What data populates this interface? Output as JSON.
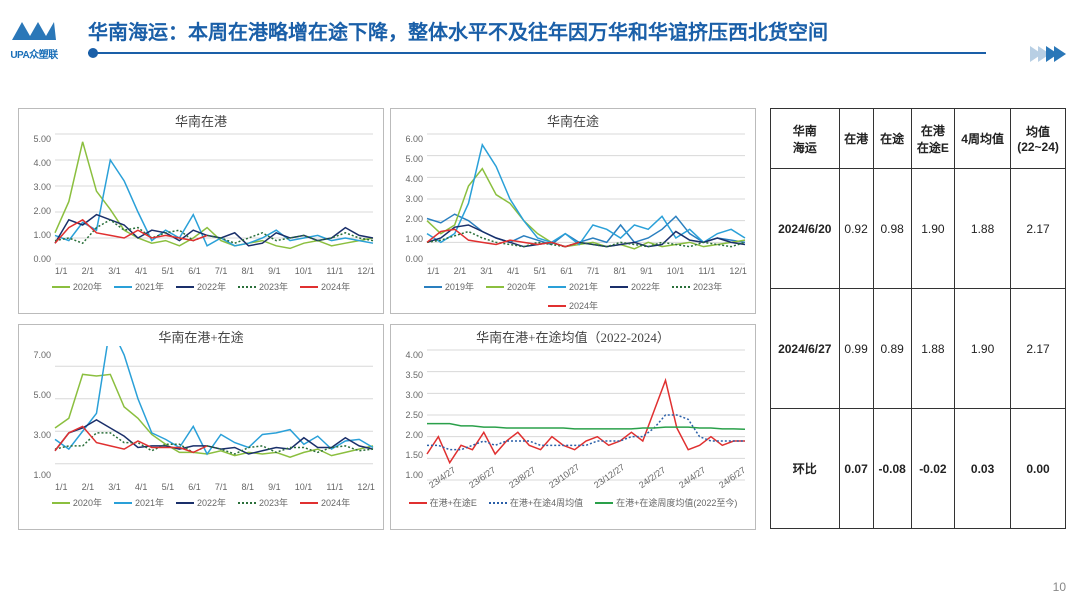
{
  "header": {
    "logo_text": "UPA众塑联",
    "title": "华南海运：本周在港略增在途下降，整体水平不及往年因万华和华谊挤压西北货空间"
  },
  "palette": {
    "y2019": "#2a7fbf",
    "y2020": "#8bbf3f",
    "y2021": "#2aa0d8",
    "y2022": "#1a2f6a",
    "y2023": "#2a6f3a",
    "y2024": "#e03030",
    "avg4w": "#2a5fa8",
    "avgAll": "#2aa04a",
    "grid": "#d8d8d8",
    "axis": "#888",
    "box": "#bbb"
  },
  "charts": {
    "tl": {
      "title": "华南在港",
      "ylim": [
        0,
        5
      ],
      "ytick_step": 1.0,
      "xticks": [
        "1/1",
        "2/1",
        "3/1",
        "4/1",
        "5/1",
        "6/1",
        "7/1",
        "8/1",
        "9/1",
        "10/1",
        "11/1",
        "12/1"
      ],
      "series": [
        {
          "name": "2020年",
          "color": "#8bbf3f",
          "dash": null,
          "data": [
            1.2,
            2.4,
            4.7,
            2.8,
            2.1,
            1.3,
            1.0,
            0.8,
            0.9,
            0.7,
            1.0,
            1.4,
            0.9,
            0.7,
            0.8,
            0.9,
            0.7,
            0.6,
            0.8,
            0.9,
            0.7,
            0.8,
            0.9,
            1.0
          ]
        },
        {
          "name": "2021年",
          "color": "#2aa0d8",
          "dash": null,
          "data": [
            1.1,
            0.9,
            1.6,
            1.3,
            4.0,
            3.2,
            2.0,
            0.9,
            1.3,
            1.0,
            1.9,
            0.7,
            1.0,
            0.7,
            0.8,
            1.0,
            1.3,
            0.9,
            1.0,
            1.1,
            0.9,
            1.0,
            0.9,
            0.8
          ]
        },
        {
          "name": "2022年",
          "color": "#1a2f6a",
          "dash": null,
          "data": [
            0.8,
            1.7,
            1.5,
            1.9,
            1.7,
            1.5,
            1.0,
            1.3,
            1.2,
            0.9,
            1.3,
            1.1,
            1.0,
            1.2,
            0.7,
            0.8,
            1.2,
            1.0,
            1.1,
            0.9,
            1.0,
            1.4,
            1.1,
            1.0
          ]
        },
        {
          "name": "2023年",
          "color": "#2a6f3a",
          "dash": "dot",
          "data": [
            0.9,
            1.0,
            0.8,
            1.4,
            1.7,
            1.3,
            1.4,
            1.0,
            1.2,
            1.3,
            0.9,
            1.1,
            1.0,
            0.8,
            1.0,
            1.2,
            0.9,
            1.0,
            1.1,
            0.9,
            1.0,
            1.2,
            1.0,
            0.9
          ]
        },
        {
          "name": "2024年",
          "color": "#e03030",
          "dash": null,
          "data": [
            0.8,
            1.4,
            1.7,
            1.2,
            1.1,
            1.0,
            1.3,
            1.0,
            1.1,
            1.0,
            0.9,
            1.1
          ]
        }
      ]
    },
    "tr": {
      "title": "华南在途",
      "ylim": [
        0,
        6
      ],
      "ytick_step": 1.0,
      "xticks": [
        "1/1",
        "2/1",
        "3/1",
        "4/1",
        "5/1",
        "6/1",
        "7/1",
        "8/1",
        "9/1",
        "10/1",
        "11/1",
        "12/1"
      ],
      "series": [
        {
          "name": "2019年",
          "color": "#2a7fbf",
          "dash": null,
          "data": [
            2.1,
            1.9,
            2.3,
            2.0,
            1.5,
            1.2,
            1.0,
            1.3,
            1.1,
            0.9,
            1.4,
            1.0,
            1.2,
            1.0,
            1.8,
            1.0,
            1.2,
            1.6,
            2.2,
            1.4,
            1.0,
            1.2,
            1.1,
            1.0
          ]
        },
        {
          "name": "2020年",
          "color": "#8bbf3f",
          "dash": null,
          "data": [
            2.0,
            1.4,
            1.8,
            3.6,
            4.4,
            3.2,
            2.8,
            2.0,
            1.4,
            1.0,
            0.8,
            0.9,
            1.0,
            0.8,
            0.9,
            0.7,
            1.0,
            0.8,
            0.9,
            1.0,
            0.8,
            0.9,
            1.0,
            1.1
          ]
        },
        {
          "name": "2021年",
          "color": "#2aa0d8",
          "dash": null,
          "data": [
            1.4,
            1.0,
            1.4,
            2.8,
            5.5,
            4.5,
            3.0,
            2.0,
            1.2,
            1.0,
            1.4,
            0.9,
            1.8,
            1.6,
            1.2,
            1.8,
            1.6,
            2.2,
            1.2,
            1.6,
            1.0,
            1.4,
            1.6,
            1.2
          ]
        },
        {
          "name": "2022年",
          "color": "#1a2f6a",
          "dash": null,
          "data": [
            1.0,
            1.2,
            1.7,
            1.8,
            1.5,
            1.2,
            1.0,
            0.8,
            0.9,
            1.0,
            0.8,
            1.0,
            0.9,
            0.8,
            0.9,
            1.0,
            0.8,
            0.9,
            1.5,
            1.1,
            1.0,
            1.2,
            1.0,
            0.9
          ]
        },
        {
          "name": "2023年",
          "color": "#2a6f3a",
          "dash": "dot",
          "data": [
            1.0,
            1.1,
            1.3,
            1.5,
            1.2,
            1.0,
            0.9,
            0.8,
            1.0,
            0.9,
            0.8,
            1.0,
            0.9,
            0.8,
            1.0,
            0.9,
            0.8,
            1.0,
            0.9,
            0.8,
            1.0,
            0.9,
            0.8,
            1.0
          ]
        },
        {
          "name": "2024年",
          "color": "#e03030",
          "dash": null,
          "data": [
            1.0,
            1.5,
            1.6,
            1.1,
            1.0,
            0.9,
            1.1,
            1.0,
            0.9,
            1.0,
            0.8,
            1.0
          ]
        }
      ]
    },
    "bl": {
      "title": "华南在港+在途",
      "ylim": [
        0,
        8
      ],
      "ytick_step": 2.0,
      "yticks_explicit": [
        "1.00",
        "3.00",
        "5.00",
        "7.00"
      ],
      "xticks": [
        "1/1",
        "2/1",
        "3/1",
        "4/1",
        "5/1",
        "6/1",
        "7/1",
        "8/1",
        "9/1",
        "10/1",
        "11/1",
        "12/1"
      ],
      "series": [
        {
          "name": "2020年",
          "color": "#8bbf3f",
          "dash": null,
          "data": [
            3.2,
            3.8,
            6.5,
            6.4,
            6.5,
            4.5,
            3.8,
            2.8,
            2.2,
            1.7,
            1.7,
            1.6,
            1.8,
            1.5,
            1.7,
            1.6,
            1.7,
            1.4,
            1.7,
            1.9,
            1.5,
            1.7,
            1.9,
            2.1
          ]
        },
        {
          "name": "2021年",
          "color": "#2aa0d8",
          "dash": null,
          "data": [
            2.5,
            1.9,
            3.0,
            4.1,
            9.5,
            7.7,
            5.0,
            2.9,
            2.5,
            2.0,
            3.3,
            1.6,
            2.8,
            2.3,
            2.0,
            2.8,
            2.9,
            3.1,
            2.2,
            2.7,
            1.9,
            2.4,
            2.5,
            2.0
          ]
        },
        {
          "name": "2022年",
          "color": "#1a2f6a",
          "dash": null,
          "data": [
            1.8,
            2.9,
            3.2,
            3.7,
            3.2,
            2.7,
            2.0,
            2.1,
            2.1,
            1.9,
            2.1,
            2.1,
            1.9,
            2.0,
            1.6,
            1.8,
            2.0,
            1.9,
            2.6,
            2.0,
            2.0,
            2.6,
            2.1,
            1.9
          ]
        },
        {
          "name": "2023年",
          "color": "#2a6f3a",
          "dash": "dot",
          "data": [
            1.9,
            2.1,
            2.1,
            2.9,
            2.9,
            2.3,
            2.3,
            1.8,
            2.2,
            2.2,
            1.7,
            2.1,
            1.9,
            1.6,
            2.0,
            2.1,
            1.7,
            2.0,
            2.0,
            1.7,
            2.0,
            2.1,
            1.8,
            1.9
          ]
        },
        {
          "name": "2024年",
          "color": "#e03030",
          "dash": null,
          "data": [
            1.8,
            2.9,
            3.3,
            2.3,
            2.1,
            1.9,
            2.4,
            2.0,
            2.0,
            2.0,
            1.7,
            2.1
          ]
        }
      ]
    },
    "br": {
      "title": "华南在港+在途均值（2022-2024）",
      "ylim": [
        1.0,
        4.0
      ],
      "ytick_step": 0.5,
      "xticks": [
        "23/4/27",
        "23/6/27",
        "23/8/27",
        "23/10/27",
        "23/12/27",
        "24/2/27",
        "24/4/27",
        "24/6/27"
      ],
      "xtick_rotate": true,
      "series": [
        {
          "name": "在港+在途E",
          "color": "#e03030",
          "dash": null,
          "data": [
            1.6,
            2.0,
            1.4,
            1.8,
            1.7,
            2.1,
            1.6,
            1.9,
            2.1,
            1.8,
            1.7,
            2.0,
            1.8,
            1.7,
            1.9,
            2.0,
            1.8,
            1.9,
            2.1,
            1.9,
            2.6,
            3.3,
            2.2,
            1.7,
            1.8,
            2.0,
            1.8,
            1.9,
            1.9
          ]
        },
        {
          "name": "在港+在途4周均值",
          "color": "#2a5fa8",
          "dash": "dot",
          "data": [
            1.8,
            1.8,
            1.7,
            1.7,
            1.8,
            1.9,
            1.8,
            1.9,
            1.9,
            1.9,
            1.8,
            1.8,
            1.8,
            1.8,
            1.8,
            1.9,
            1.9,
            1.9,
            2.0,
            2.0,
            2.2,
            2.5,
            2.5,
            2.4,
            2.0,
            1.9,
            1.9,
            1.9,
            1.9
          ]
        },
        {
          "name": "在港+在途周度均值(2022至今)",
          "color": "#2aa04a",
          "dash": null,
          "data": [
            2.3,
            2.3,
            2.3,
            2.25,
            2.25,
            2.22,
            2.22,
            2.2,
            2.2,
            2.2,
            2.2,
            2.2,
            2.2,
            2.18,
            2.18,
            2.18,
            2.18,
            2.18,
            2.18,
            2.2,
            2.2,
            2.22,
            2.22,
            2.22,
            2.2,
            2.2,
            2.18,
            2.18,
            2.17
          ]
        }
      ]
    }
  },
  "table": {
    "col_headers": [
      "华南\n海运",
      "在港",
      "在途",
      "在港\n在途E",
      "4周均值",
      "均值\n(22~24)"
    ],
    "rows": [
      {
        "h": "2024/6/20",
        "cells": [
          "0.92",
          "0.98",
          "1.90",
          "1.88",
          "2.17"
        ]
      },
      {
        "h": "2024/6/27",
        "cells": [
          "0.99",
          "0.89",
          "1.88",
          "1.90",
          "2.17"
        ]
      },
      {
        "h": "环比",
        "cells": [
          "0.07",
          "-0.08",
          "-0.02",
          "0.03",
          "0.00"
        ],
        "bold": true
      }
    ]
  },
  "page_number": "10"
}
